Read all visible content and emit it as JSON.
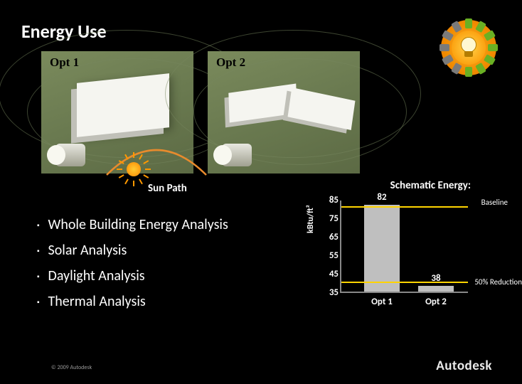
{
  "title": "Energy Use",
  "opt1_label": "Opt 1",
  "opt2_label": "Opt 2",
  "sunpath_label": "Sun Path",
  "schematic_label": "Schematic Energy:",
  "bullets": [
    "Whole Building Energy Analysis",
    "Solar Analysis",
    "Daylight Analysis",
    "Thermal Analysis"
  ],
  "chart": {
    "type": "bar",
    "yaxis_label": "kBtu/ft²",
    "ylim": [
      35,
      85
    ],
    "ytick_step": 10,
    "yticks": [
      85,
      75,
      65,
      55,
      45,
      35
    ],
    "categories": [
      "Opt 1",
      "Opt 2"
    ],
    "values": [
      82,
      38
    ],
    "bar_color": "#bfbfbf",
    "baseline_value": 82,
    "baseline_label": "Baseline",
    "baseline_color": "#ffd400",
    "reduction_value": 41,
    "reduction_label": "50% Reduction",
    "reduction_color": "#ffd400",
    "background": "#000000",
    "axis_color": "#888888"
  },
  "badge": {
    "segments": 12,
    "green_segments": 7,
    "green_color": "#6ab023",
    "grey_color": "#7a7a7a",
    "center_color": "#fca311"
  },
  "copyright": "© 2009 Autodesk",
  "brand": "Autodesk"
}
